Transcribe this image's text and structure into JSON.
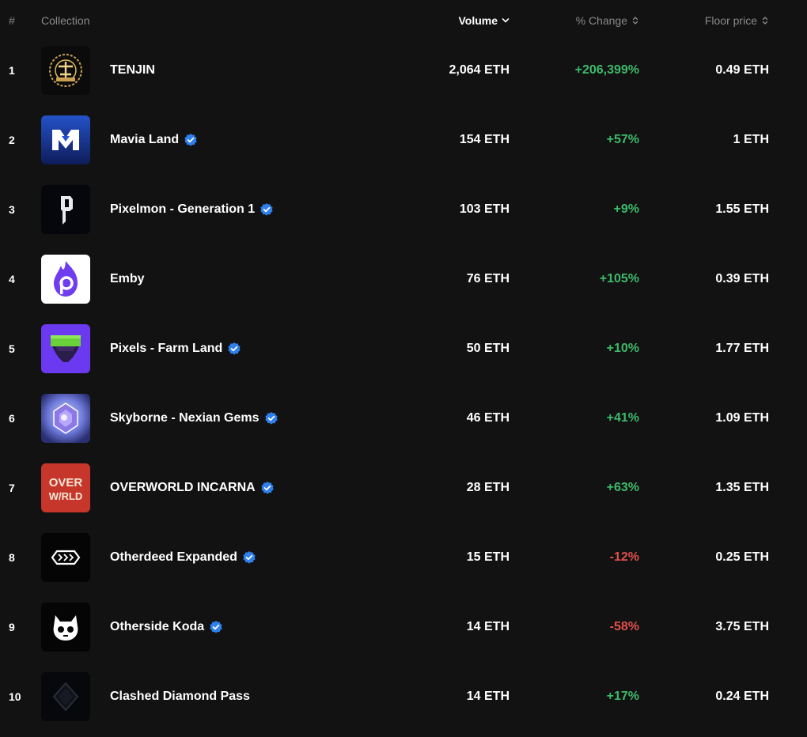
{
  "header": {
    "num": "#",
    "collection": "Collection",
    "volume": "Volume",
    "change": "% Change",
    "floor": "Floor price"
  },
  "colors": {
    "positive": "#3dba6a",
    "negative": "#e2504a",
    "verified": "#2f80ed",
    "background": "#121212"
  },
  "rows": [
    {
      "rank": "1",
      "name": "TENJIN",
      "verified": false,
      "volume": "2,064 ETH",
      "change": "+206,399%",
      "trend": "pos",
      "floor": "0.49 ETH",
      "icon": "tenjin-logo-icon"
    },
    {
      "rank": "2",
      "name": "Mavia Land",
      "verified": true,
      "volume": "154 ETH",
      "change": "+57%",
      "trend": "pos",
      "floor": "1 ETH",
      "icon": "mavia-logo-icon"
    },
    {
      "rank": "3",
      "name": "Pixelmon - Generation 1",
      "verified": true,
      "volume": "103 ETH",
      "change": "+9%",
      "trend": "pos",
      "floor": "1.55 ETH",
      "icon": "pixelmon-logo-icon"
    },
    {
      "rank": "4",
      "name": "Emby",
      "verified": false,
      "volume": "76 ETH",
      "change": "+105%",
      "trend": "pos",
      "floor": "0.39 ETH",
      "icon": "emby-logo-icon"
    },
    {
      "rank": "5",
      "name": "Pixels - Farm Land",
      "verified": true,
      "volume": "50 ETH",
      "change": "+10%",
      "trend": "pos",
      "floor": "1.77 ETH",
      "icon": "pixels-logo-icon"
    },
    {
      "rank": "6",
      "name": "Skyborne - Nexian Gems",
      "verified": true,
      "volume": "46 ETH",
      "change": "+41%",
      "trend": "pos",
      "floor": "1.09 ETH",
      "icon": "skyborne-logo-icon"
    },
    {
      "rank": "7",
      "name": "OVERWORLD INCARNA",
      "verified": true,
      "volume": "28 ETH",
      "change": "+63%",
      "trend": "pos",
      "floor": "1.35 ETH",
      "icon": "overworld-logo-icon"
    },
    {
      "rank": "8",
      "name": "Otherdeed Expanded",
      "verified": true,
      "volume": "15 ETH",
      "change": "-12%",
      "trend": "neg",
      "floor": "0.25 ETH",
      "icon": "otherdeed-logo-icon"
    },
    {
      "rank": "9",
      "name": "Otherside Koda",
      "verified": true,
      "volume": "14 ETH",
      "change": "-58%",
      "trend": "neg",
      "floor": "3.75 ETH",
      "icon": "koda-logo-icon"
    },
    {
      "rank": "10",
      "name": "Clashed Diamond Pass",
      "verified": false,
      "volume": "14 ETH",
      "change": "+17%",
      "trend": "pos",
      "floor": "0.24 ETH",
      "icon": "diamond-logo-icon"
    }
  ]
}
